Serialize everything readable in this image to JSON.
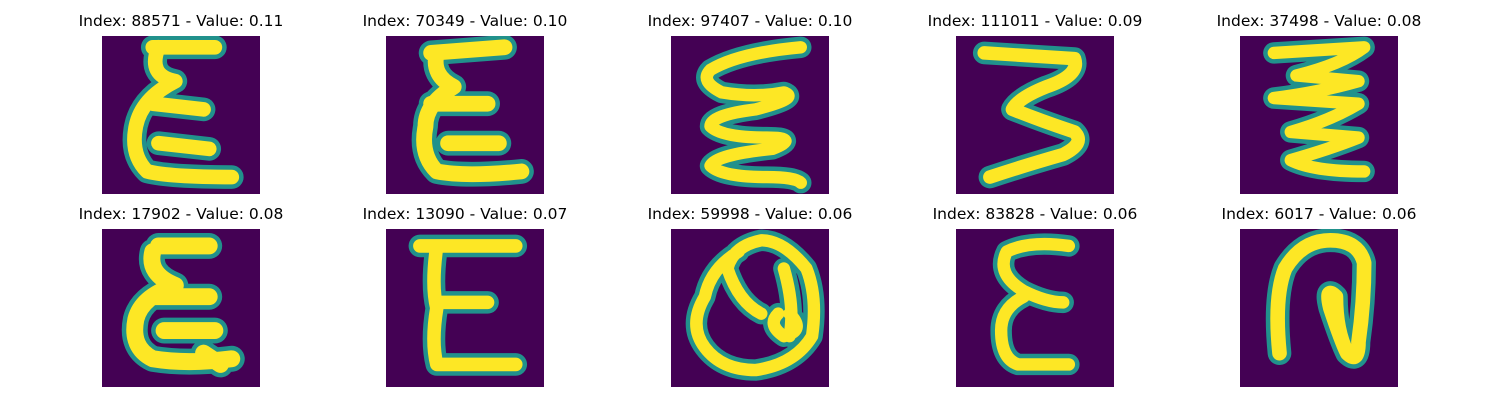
{
  "colors": {
    "background": "#440154",
    "mid": "#21918c",
    "stroke": "#fde725"
  },
  "panels": [
    {
      "title": "Index: 88571 - Value: 0.11",
      "glyph": "epsilon-like handwritten E"
    },
    {
      "title": "Index: 70349 - Value: 0.10",
      "glyph": "epsilon-like handwritten E"
    },
    {
      "title": "Index: 97407 - Value: 0.10",
      "glyph": "wavy handwritten E"
    },
    {
      "title": "Index: 111011 - Value: 0.09",
      "glyph": "handwritten 3"
    },
    {
      "title": "Index: 37498 - Value: 0.08",
      "glyph": "zig-zag handwritten E"
    },
    {
      "title": "Index: 17902 - Value: 0.08",
      "glyph": "epsilon-like handwritten E"
    },
    {
      "title": "Index: 13090 - Value: 0.07",
      "glyph": "handwritten E"
    },
    {
      "title": "Index: 59998 - Value: 0.06",
      "glyph": "handwritten Q"
    },
    {
      "title": "Index: 83828 - Value: 0.06",
      "glyph": "handwritten E"
    },
    {
      "title": "Index: 6017 - Value: 0.06",
      "glyph": "handwritten loop"
    }
  ]
}
